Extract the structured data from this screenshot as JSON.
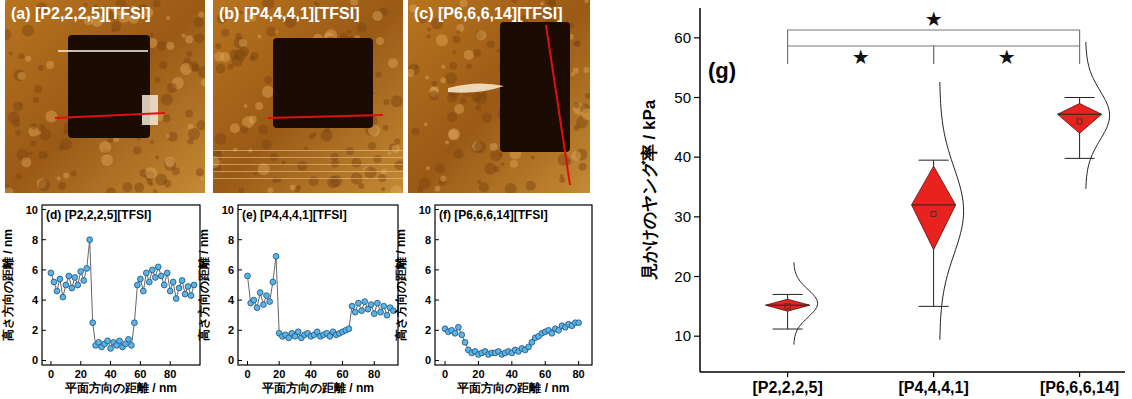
{
  "images": [
    {
      "label": "(a) [P2,2,2,5][TFSI]"
    },
    {
      "label": "(b) [P4,4,4,1][TFSI]"
    },
    {
      "label": "(c) [P6,6,6,14][TFSI]"
    }
  ],
  "chart_data": [
    {
      "type": "line",
      "title": "(d) [P2,2,2,5][TFSI]",
      "x_label": "平面方向の距離 / nm",
      "y_label": "高さ方向の距離 / nm",
      "x": [
        0,
        2,
        4,
        6,
        8,
        10,
        12,
        14,
        16,
        18,
        20,
        22,
        24,
        26,
        28,
        30,
        32,
        34,
        36,
        38,
        40,
        42,
        44,
        46,
        48,
        50,
        52,
        54,
        56,
        58,
        60,
        62,
        64,
        66,
        68,
        70,
        72,
        74,
        76,
        78,
        80,
        82,
        84,
        86,
        88,
        90,
        92,
        94,
        96
      ],
      "values": [
        5.8,
        5.2,
        4.6,
        5.4,
        4.2,
        5.0,
        5.6,
        4.8,
        5.5,
        5.0,
        5.9,
        5.3,
        6.1,
        8.0,
        2.5,
        1.0,
        1.2,
        0.9,
        1.1,
        1.3,
        0.8,
        1.2,
        1.0,
        1.3,
        0.9,
        1.1,
        1.4,
        1.0,
        2.5,
        5.0,
        5.4,
        4.6,
        5.8,
        5.2,
        6.0,
        5.5,
        6.2,
        5.6,
        5.0,
        5.8,
        4.6,
        5.2,
        4.1,
        4.8,
        5.3,
        4.4,
        4.9,
        4.3,
        5.0
      ],
      "xlim": [
        -6,
        100
      ],
      "ylim": [
        -0.3,
        10.3
      ],
      "xticks": [
        0,
        20,
        40,
        60,
        80
      ],
      "yticks": [
        0,
        2,
        4,
        6,
        8,
        10
      ],
      "color": "#5ab4e5",
      "marker": "circle",
      "line_style": "solid"
    },
    {
      "type": "line",
      "title": "(e) [P4,4,4,1][TFSI]",
      "x_label": "平面方向の距離 / nm",
      "y_label": "高さ方向の距離 / nm",
      "x": [
        0,
        2,
        4,
        6,
        8,
        10,
        12,
        14,
        16,
        18,
        20,
        22,
        24,
        26,
        28,
        30,
        32,
        34,
        36,
        38,
        40,
        42,
        44,
        46,
        48,
        50,
        52,
        54,
        56,
        58,
        60,
        62,
        64,
        66,
        68,
        70,
        72,
        74,
        76,
        78,
        80,
        82,
        84,
        86,
        88,
        90,
        92
      ],
      "values": [
        5.6,
        3.8,
        4.0,
        3.5,
        4.5,
        3.7,
        4.3,
        3.9,
        5.2,
        6.9,
        1.8,
        1.6,
        1.7,
        1.5,
        1.8,
        1.6,
        1.9,
        1.5,
        1.7,
        1.8,
        1.6,
        1.7,
        1.9,
        1.6,
        1.7,
        1.8,
        1.6,
        1.9,
        1.7,
        1.8,
        1.9,
        2.0,
        2.1,
        3.6,
        3.2,
        3.8,
        3.3,
        3.9,
        3.4,
        3.7,
        3.1,
        3.8,
        3.2,
        3.6,
        3.0,
        3.5,
        3.3
      ],
      "xlim": [
        -6,
        95
      ],
      "ylim": [
        -0.3,
        10.3
      ],
      "xticks": [
        0,
        20,
        40,
        60,
        80
      ],
      "yticks": [
        0,
        2,
        4,
        6,
        8,
        10
      ],
      "color": "#5ab4e5",
      "marker": "circle",
      "line_style": "solid"
    },
    {
      "type": "line",
      "title": "(f) [P6,6,6,14][TFSI]",
      "x_label": "平面方向の距離 / nm",
      "y_label": "高さ方向の距離 / nm",
      "x": [
        0,
        2,
        4,
        6,
        8,
        10,
        12,
        14,
        16,
        18,
        20,
        22,
        24,
        26,
        28,
        30,
        32,
        34,
        36,
        38,
        40,
        42,
        44,
        46,
        48,
        50,
        52,
        54,
        56,
        58,
        60,
        62,
        64,
        66,
        68,
        70,
        72,
        74,
        76,
        78,
        80
      ],
      "values": [
        2.1,
        1.9,
        2.0,
        1.8,
        2.2,
        1.7,
        1.2,
        0.7,
        0.5,
        0.6,
        0.4,
        0.5,
        0.6,
        0.4,
        0.5,
        0.5,
        0.6,
        0.4,
        0.5,
        0.6,
        0.5,
        0.7,
        0.6,
        0.8,
        0.7,
        0.9,
        1.2,
        1.5,
        1.6,
        1.8,
        1.9,
        2.0,
        1.8,
        2.1,
        2.0,
        2.3,
        2.2,
        2.4,
        2.3,
        2.5,
        2.5
      ],
      "xlim": [
        -6,
        88
      ],
      "ylim": [
        -0.3,
        10.3
      ],
      "xticks": [
        0,
        20,
        40,
        60,
        80
      ],
      "yticks": [
        0,
        2,
        4,
        6,
        8,
        10
      ],
      "color": "#5ab4e5",
      "marker": "circle",
      "line_style": "solid"
    },
    {
      "type": "box",
      "title": "(g)",
      "y_label": "見かけのヤング率 / kPa",
      "categories": [
        "[P2,2,2,5]",
        "[P4,4,4,1]",
        "[P6,6,6,14]"
      ],
      "whisker_low": [
        11.2,
        15.0,
        39.8
      ],
      "q1": [
        14.2,
        24.5,
        44.0
      ],
      "median": [
        15.2,
        32.0,
        47.2
      ],
      "q3": [
        16.2,
        38.5,
        49.0
      ],
      "whisker_high": [
        17.0,
        39.5,
        50.0
      ],
      "mean": [
        15.0,
        30.5,
        46.0
      ],
      "curve_mean": [
        15.5,
        31.0,
        47.0
      ],
      "curve_sd": [
        2.3,
        7.2,
        4.1
      ],
      "significance": [
        {
          "pair": [
            0,
            2
          ],
          "label": "★"
        },
        {
          "pair": [
            0,
            1
          ],
          "label": "★"
        },
        {
          "pair": [
            1,
            2
          ],
          "label": "★"
        }
      ],
      "ylim": [
        4,
        65
      ],
      "yticks": [
        10,
        20,
        30,
        40,
        50,
        60
      ],
      "color": "#e8231f"
    }
  ]
}
